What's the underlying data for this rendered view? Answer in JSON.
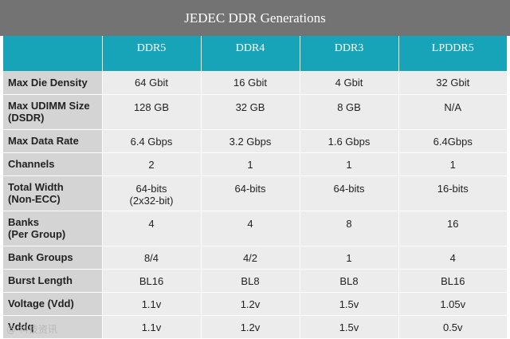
{
  "title": "JEDEC DDR Generations",
  "columns": [
    "",
    "DDR5",
    "DDR4",
    "DDR3",
    "LPDDR5"
  ],
  "rows": [
    {
      "label": "Max Die Density",
      "values": [
        "64 Gbit",
        "16 Gbit",
        "4 Gbit",
        "32 Gbit"
      ],
      "tall": false
    },
    {
      "label": "Max UDIMM Size\n(DSDR)",
      "values": [
        "128 GB",
        "32 GB",
        "8 GB",
        "N/A"
      ],
      "tall": true
    },
    {
      "label": "Max Data Rate",
      "values": [
        "6.4 Gbps",
        "3.2 Gbps",
        "1.6 Gbps",
        "6.4Gbps"
      ],
      "tall": false
    },
    {
      "label": "Channels",
      "values": [
        "2",
        "1",
        "1",
        "1"
      ],
      "tall": false
    },
    {
      "label": "Total Width\n(Non-ECC)",
      "values": [
        "64-bits\n(2x32-bit)",
        "64-bits",
        "64-bits",
        "16-bits"
      ],
      "tall": true
    },
    {
      "label": "Banks\n(Per Group)",
      "values": [
        "4",
        "4",
        "8",
        "16"
      ],
      "tall": true
    },
    {
      "label": "Bank Groups",
      "values": [
        "8/4",
        "4/2",
        "1",
        "4"
      ],
      "tall": false
    },
    {
      "label": "Burst Length",
      "values": [
        "BL16",
        "BL8",
        "BL8",
        "BL16"
      ],
      "tall": false
    },
    {
      "label": "Voltage (Vdd)",
      "values": [
        "1.1v",
        "1.2v",
        "1.5v",
        "1.05v"
      ],
      "tall": false
    },
    {
      "label": "Vddq",
      "values": [
        "1.1v",
        "1.2v",
        "1.5v",
        "0.5v"
      ],
      "tall": false
    }
  ],
  "watermark": "@ 科技资讯"
}
